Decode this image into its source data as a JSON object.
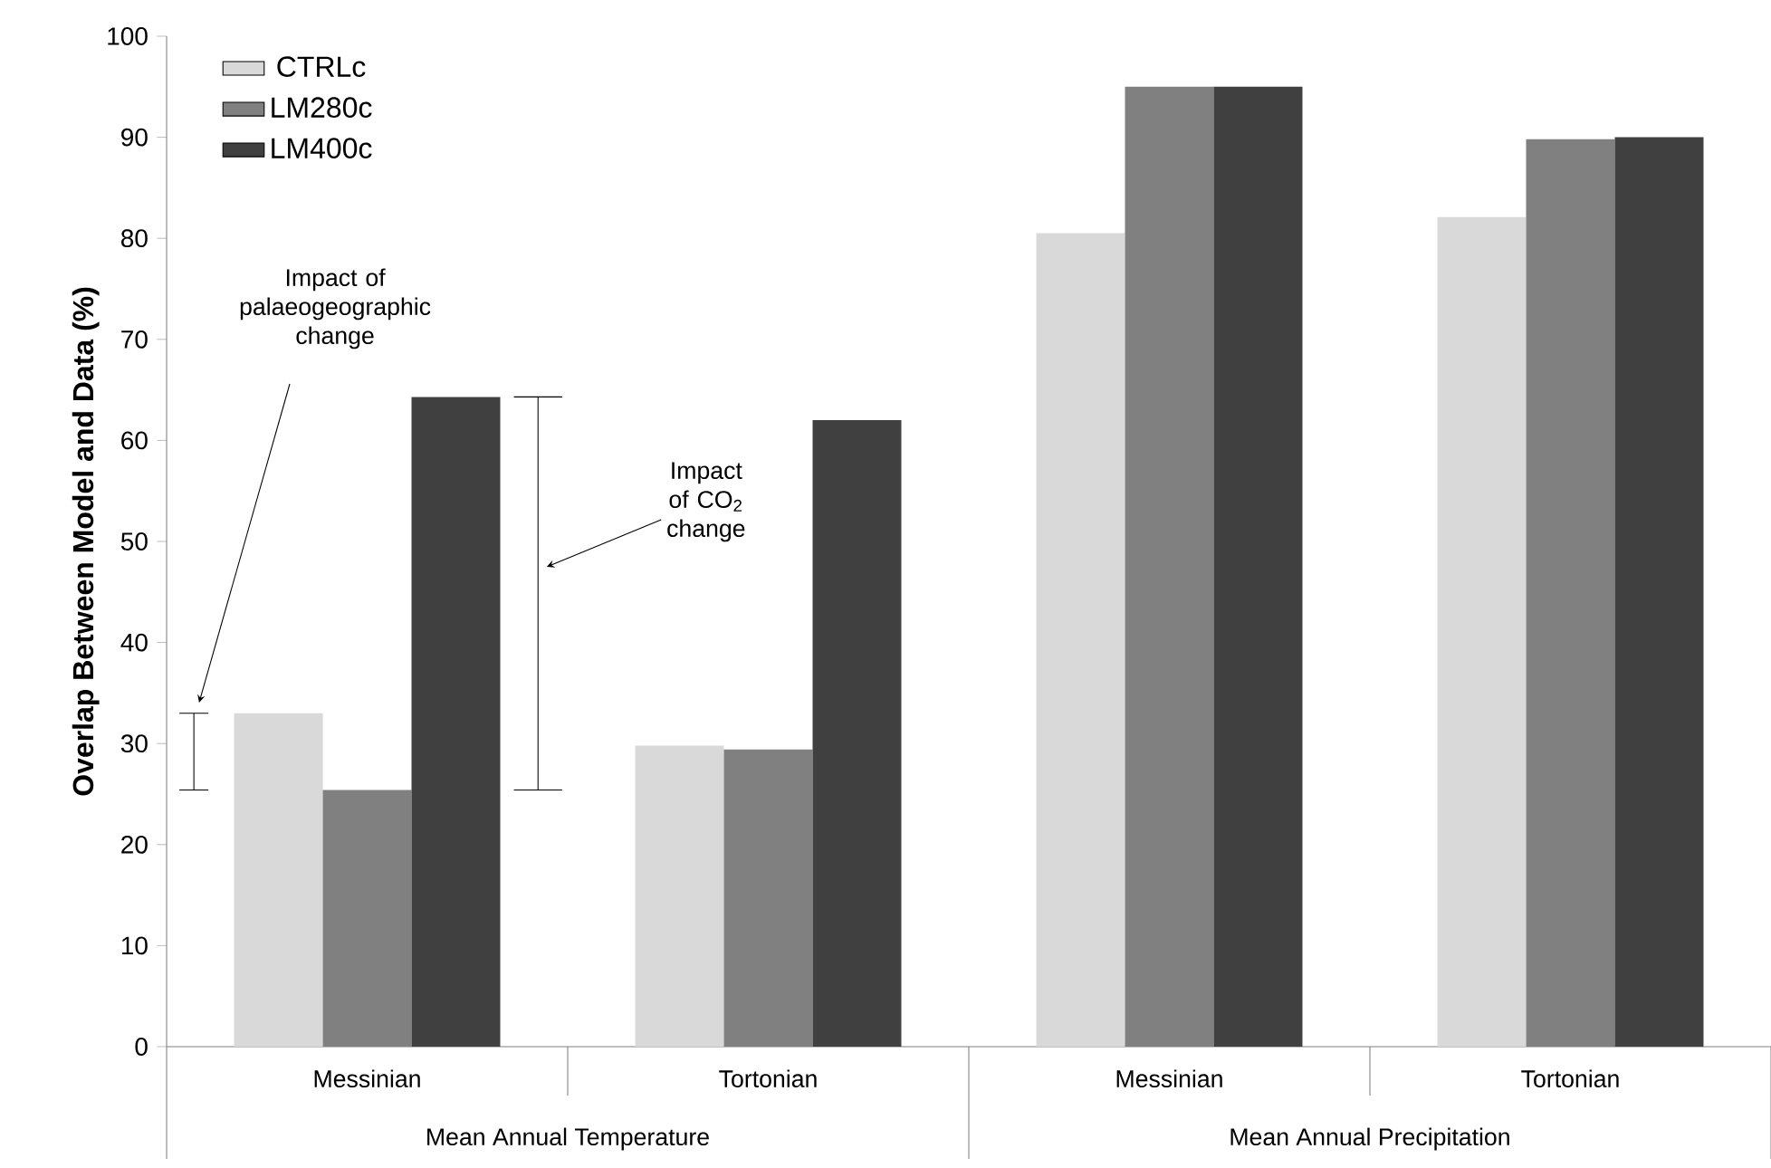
{
  "chart_data": {
    "type": "bar",
    "ylabel": "Overlap Between Model and Data (%)",
    "categories": [
      "Messinian",
      "Tortonian",
      "Messinian",
      "Tortonian"
    ],
    "series": [
      {
        "name": "CTRLc",
        "color": "#d9d9d9",
        "values": [
          33,
          29.8,
          80.5,
          82.1
        ]
      },
      {
        "name": "LM280c",
        "color": "#808080",
        "values": [
          25.4,
          29.4,
          95,
          89.8
        ]
      },
      {
        "name": "LM400c",
        "color": "#404040",
        "values": [
          64.3,
          62,
          95,
          90
        ]
      }
    ],
    "ylim": [
      0,
      100
    ],
    "yticks": [
      0,
      10,
      20,
      30,
      40,
      50,
      60,
      70,
      80,
      90,
      100
    ],
    "legend": "top left",
    "annotations": [
      "Impact of palaeogeographic change",
      "Impact of CO$_{2}$ change",
      "Mean Annual Temperature",
      "Mean Annual Precipitation"
    ]
  }
}
